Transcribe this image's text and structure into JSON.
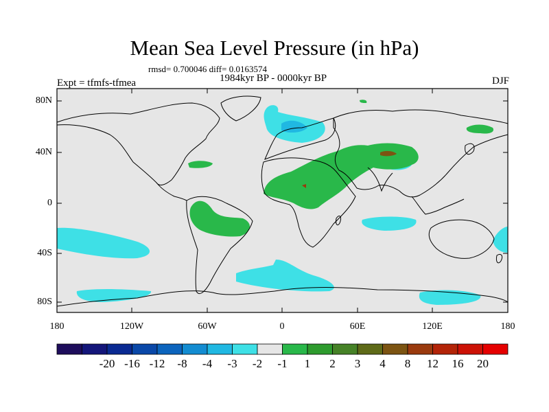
{
  "title": "Mean Sea Level Pressure (in hPa)",
  "stats": "rmsd= 0.700046 diff= 0.0163574",
  "period": "1984kyr BP - 0000kyr BP",
  "experiment": "Expt = tfmfs-tfmea",
  "season": "DJF",
  "lat_labels": [
    "80N",
    "40N",
    "0",
    "40S",
    "80S"
  ],
  "lon_labels": [
    "180",
    "120W",
    "60W",
    "0",
    "60E",
    "120E",
    "180"
  ],
  "colorbar": {
    "colors": [
      "#1e0d5c",
      "#14167a",
      "#0a2a92",
      "#0a48a8",
      "#0c64bd",
      "#138cd1",
      "#20b8e2",
      "#3ee0e6",
      "#e6e6e6",
      "#29b84a",
      "#2e9b2e",
      "#468227",
      "#5e6a18",
      "#7c5412",
      "#9a3a0e",
      "#b32408",
      "#cc1206",
      "#e50000"
    ],
    "labels": [
      "-20",
      "-16",
      "-12",
      "-8",
      "-4",
      "-3",
      "-2",
      "-1",
      "1",
      "2",
      "3",
      "4",
      "8",
      "12",
      "16",
      "20"
    ]
  }
}
